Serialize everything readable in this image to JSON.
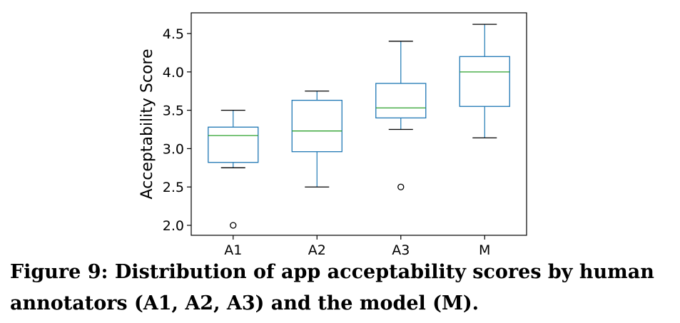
{
  "chart_data": {
    "type": "box",
    "ylabel": "Acceptability Score",
    "xlabel": "",
    "ylim": [
      1.87,
      4.77
    ],
    "yticks": [
      2.0,
      2.5,
      3.0,
      3.5,
      4.0,
      4.5
    ],
    "ytick_labels": [
      "2.0",
      "2.5",
      "3.0",
      "3.5",
      "4.0",
      "4.5"
    ],
    "categories": [
      "A1",
      "A2",
      "A3",
      "M"
    ],
    "grid": false,
    "colors": {
      "box": "#1f77b4",
      "median": "#2ca02c",
      "whisker": "#1f77b4",
      "cap": "#000000",
      "outlier": "#000000"
    },
    "boxes": [
      {
        "label": "A1",
        "whisker_low": 2.75,
        "q1": 2.82,
        "median": 3.17,
        "q3": 3.28,
        "whisker_high": 3.5,
        "outliers": [
          2.0
        ]
      },
      {
        "label": "A2",
        "whisker_low": 2.5,
        "q1": 2.96,
        "median": 3.23,
        "q3": 3.63,
        "whisker_high": 3.75,
        "outliers": []
      },
      {
        "label": "A3",
        "whisker_low": 3.25,
        "q1": 3.4,
        "median": 3.53,
        "q3": 3.85,
        "whisker_high": 4.4,
        "outliers": [
          2.5
        ]
      },
      {
        "label": "M",
        "whisker_low": 3.14,
        "q1": 3.55,
        "median": 4.0,
        "q3": 4.2,
        "whisker_high": 4.62,
        "outliers": []
      }
    ]
  },
  "caption": {
    "line1": "Figure 9: Distribution of app acceptability scores by human",
    "line2": "annotators (A1, A2, A3) and the model (M)."
  }
}
